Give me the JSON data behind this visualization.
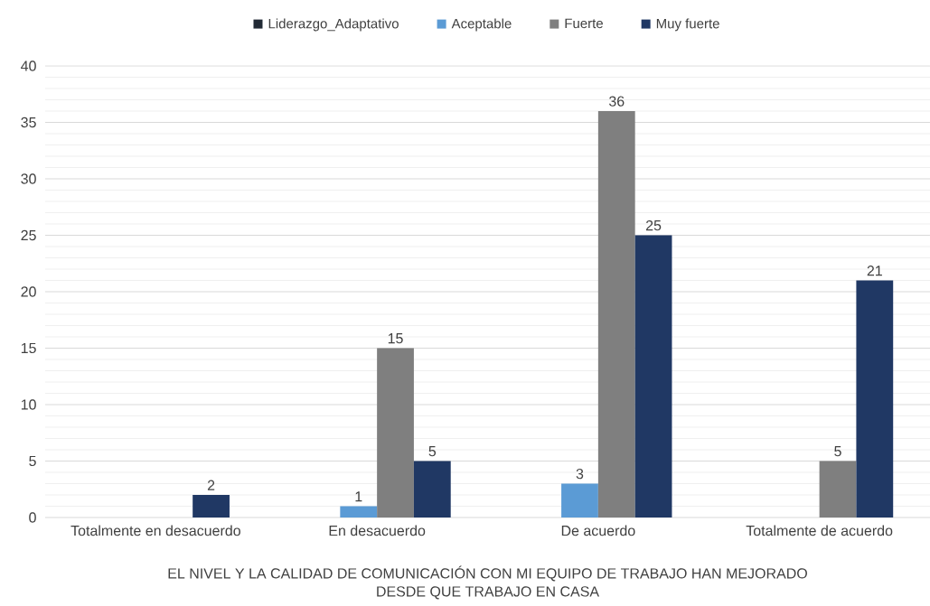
{
  "chart_data": {
    "type": "bar",
    "categories": [
      "Totalmente en desacuerdo",
      "En desacuerdo",
      "De acuerdo",
      "Totalmente de acuerdo"
    ],
    "series": [
      {
        "name": "Liderazgo_Adaptativo",
        "color": "#222a35",
        "values": [
          null,
          null,
          null,
          null
        ]
      },
      {
        "name": "Aceptable",
        "color": "#5b9bd5",
        "values": [
          null,
          1,
          3,
          null
        ]
      },
      {
        "name": "Fuerte",
        "color": "#7f7f7f",
        "values": [
          null,
          15,
          36,
          5
        ]
      },
      {
        "name": "Muy fuerte",
        "color": "#203864",
        "values": [
          2,
          5,
          25,
          21
        ]
      }
    ],
    "xlabel": "EL NIVEL Y LA CALIDAD DE COMUNICACIÓN CON MI EQUIPO DE TRABAJO HAN MEJORADO DESDE QUE TRABAJO EN CASA",
    "ylim": [
      0,
      40
    ],
    "yticks": [
      0,
      {
        "value": 1,
        "label": null
      },
      {
        "value": 2,
        "label": null
      },
      {
        "value": 3,
        "label": null
      },
      {
        "value": 4,
        "label": null
      },
      5,
      {
        "value": 6,
        "label": null
      },
      {
        "value": 7,
        "label": null
      },
      {
        "value": 8,
        "label": null
      },
      {
        "value": 9,
        "label": null
      },
      10,
      {
        "value": 11,
        "label": null
      },
      {
        "value": 12,
        "label": null
      },
      {
        "value": 13,
        "label": null
      },
      {
        "value": 14,
        "label": null
      },
      15,
      {
        "value": 16,
        "label": null
      },
      {
        "value": 17,
        "label": null
      },
      {
        "value": 18,
        "label": null
      },
      {
        "value": 19,
        "label": null
      },
      20,
      {
        "value": 21,
        "label": null
      },
      {
        "value": 22,
        "label": null
      },
      {
        "value": 23,
        "label": null
      },
      {
        "value": 24,
        "label": null
      },
      25,
      {
        "value": 26,
        "label": null
      },
      {
        "value": 27,
        "label": null
      },
      {
        "value": 28,
        "label": null
      },
      {
        "value": 29,
        "label": null
      },
      30,
      {
        "value": 31,
        "label": null
      },
      {
        "value": 32,
        "label": null
      },
      {
        "value": 33,
        "label": null
      },
      {
        "value": 34,
        "label": null
      },
      35,
      {
        "value": 36,
        "label": null
      },
      {
        "value": 37,
        "label": null
      },
      {
        "value": 38,
        "label": null
      },
      {
        "value": 39,
        "label": null
      },
      40
    ],
    "grid": "y",
    "legend": "top",
    "data_labels": true
  }
}
